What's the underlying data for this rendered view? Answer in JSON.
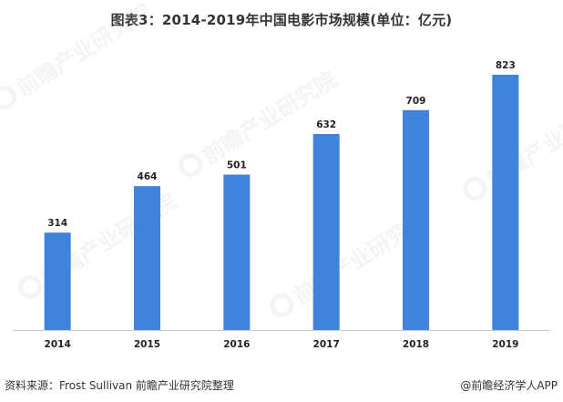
{
  "title": "图表3：2014-2019年中国电影市场规模(单位：亿元)",
  "source": "资料来源：Frost Sullivan 前瞻产业研究院整理",
  "watermark": "前瞻产业研究院",
  "brand": "@前瞻经济学人APP",
  "colors": {
    "bar": "#3f83dd",
    "axis": "#c8c8c8"
  },
  "chart_data": {
    "type": "bar",
    "categories": [
      "2014",
      "2015",
      "2016",
      "2017",
      "2018",
      "2019"
    ],
    "values": [
      314,
      464,
      501,
      632,
      709,
      823
    ],
    "title": "图表3：2014-2019年中国电影市场规模(单位：亿元)",
    "xlabel": "",
    "ylabel": "",
    "ylim": [
      0,
      850
    ],
    "grid": false,
    "legend": "none"
  }
}
